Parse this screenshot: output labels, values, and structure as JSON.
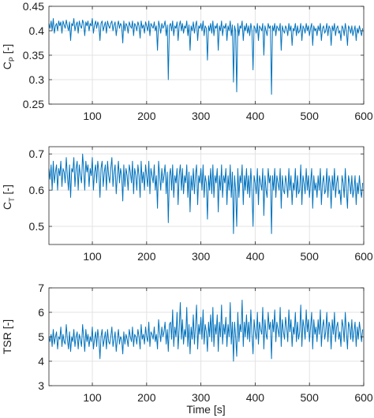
{
  "chart_data": [
    {
      "type": "line",
      "ylabel": "C_P [-]",
      "ylabel_main": "C",
      "ylabel_sub": "P",
      "ylabel_suffix": " [-]",
      "xlim": [
        20,
        600
      ],
      "ylim": [
        0.25,
        0.45
      ],
      "xticks": [
        100,
        200,
        300,
        400,
        500,
        600
      ],
      "yticks": [
        0.25,
        0.3,
        0.35,
        0.4,
        0.45
      ],
      "ytick_labels": [
        "0.25",
        "0.3",
        "0.35",
        "0.4",
        "0.45"
      ],
      "grid": true,
      "series": [
        {
          "color": "#0072BD",
          "x_step": 2,
          "values": [
            0.415,
            0.405,
            0.42,
            0.4,
            0.425,
            0.395,
            0.41,
            0.415,
            0.4,
            0.42,
            0.41,
            0.418,
            0.395,
            0.42,
            0.412,
            0.405,
            0.422,
            0.41,
            0.4,
            0.418,
            0.38,
            0.415,
            0.41,
            0.425,
            0.4,
            0.412,
            0.418,
            0.395,
            0.42,
            0.41,
            0.405,
            0.422,
            0.415,
            0.39,
            0.418,
            0.41,
            0.42,
            0.4,
            0.415,
            0.41,
            0.425,
            0.395,
            0.412,
            0.42,
            0.405,
            0.418,
            0.41,
            0.38,
            0.415,
            0.42,
            0.4,
            0.41,
            0.418,
            0.395,
            0.42,
            0.41,
            0.405,
            0.415,
            0.42,
            0.4,
            0.412,
            0.418,
            0.39,
            0.41,
            0.42,
            0.405,
            0.415,
            0.41,
            0.375,
            0.42,
            0.4,
            0.415,
            0.41,
            0.395,
            0.418,
            0.41,
            0.405,
            0.42,
            0.39,
            0.415,
            0.41,
            0.4,
            0.418,
            0.41,
            0.385,
            0.42,
            0.405,
            0.412,
            0.395,
            0.418,
            0.41,
            0.4,
            0.42,
            0.39,
            0.415,
            0.41,
            0.405,
            0.418,
            0.4,
            0.41,
            0.36,
            0.42,
            0.41,
            0.395,
            0.415,
            0.405,
            0.41,
            0.42,
            0.39,
            0.412,
            0.3,
            0.41,
            0.415,
            0.4,
            0.42,
            0.39,
            0.41,
            0.405,
            0.418,
            0.38,
            0.41,
            0.42,
            0.4,
            0.415,
            0.395,
            0.41,
            0.405,
            0.42,
            0.39,
            0.412,
            0.36,
            0.41,
            0.4,
            0.418,
            0.395,
            0.41,
            0.42,
            0.38,
            0.41,
            0.405,
            0.415,
            0.4,
            0.42,
            0.39,
            0.41,
            0.405,
            0.34,
            0.41,
            0.4,
            0.415,
            0.395,
            0.42,
            0.39,
            0.41,
            0.405,
            0.415,
            0.36,
            0.41,
            0.4,
            0.42,
            0.39,
            0.41,
            0.405,
            0.415,
            0.38,
            0.41,
            0.4,
            0.42,
            0.39,
            0.412,
            0.295,
            0.41,
            0.4,
            0.275,
            0.415,
            0.39,
            0.41,
            0.405,
            0.42,
            0.38,
            0.41,
            0.4,
            0.415,
            0.395,
            0.41,
            0.39,
            0.415,
            0.4,
            0.32,
            0.41,
            0.405,
            0.395,
            0.415,
            0.38,
            0.41,
            0.405,
            0.4,
            0.415,
            0.35,
            0.41,
            0.4,
            0.39,
            0.415,
            0.405,
            0.41,
            0.27,
            0.41,
            0.4,
            0.415,
            0.39,
            0.41,
            0.405,
            0.4,
            0.415,
            0.36,
            0.41,
            0.4,
            0.395,
            0.41,
            0.405,
            0.39,
            0.415,
            0.4,
            0.41,
            0.37,
            0.405,
            0.4,
            0.415,
            0.39,
            0.41,
            0.395,
            0.4,
            0.415,
            0.38,
            0.41,
            0.405,
            0.395,
            0.415,
            0.4,
            0.41,
            0.39,
            0.405,
            0.415,
            0.37,
            0.41,
            0.4,
            0.405,
            0.39,
            0.41,
            0.4,
            0.415,
            0.38,
            0.405,
            0.41,
            0.395,
            0.4,
            0.415,
            0.39,
            0.41,
            0.405,
            0.37,
            0.41,
            0.4,
            0.415,
            0.39,
            0.405,
            0.41,
            0.395,
            0.4,
            0.38,
            0.41,
            0.405,
            0.39,
            0.415,
            0.4,
            0.37,
            0.41,
            0.405,
            0.395,
            0.41,
            0.39,
            0.4,
            0.41,
            0.38,
            0.405,
            0.395,
            0.41,
            0.4,
            0.39,
            0.405
          ]
        }
      ]
    },
    {
      "type": "line",
      "ylabel": "C_T [-]",
      "ylabel_main": "C",
      "ylabel_sub": "T",
      "ylabel_suffix": " [-]",
      "xlim": [
        20,
        600
      ],
      "ylim": [
        0.45,
        0.72
      ],
      "xticks": [
        100,
        200,
        300,
        400,
        500,
        600
      ],
      "yticks": [
        0.5,
        0.6,
        0.7
      ],
      "ytick_labels": [
        "0.5",
        "0.6",
        "0.7"
      ],
      "grid": true,
      "series": [
        {
          "color": "#0072BD",
          "x_step": 2,
          "values": [
            0.66,
            0.63,
            0.67,
            0.6,
            0.68,
            0.62,
            0.65,
            0.67,
            0.6,
            0.66,
            0.64,
            0.68,
            0.61,
            0.66,
            0.65,
            0.62,
            0.69,
            0.64,
            0.6,
            0.67,
            0.58,
            0.66,
            0.65,
            0.69,
            0.61,
            0.66,
            0.68,
            0.6,
            0.67,
            0.64,
            0.62,
            0.7,
            0.66,
            0.6,
            0.68,
            0.65,
            0.67,
            0.61,
            0.66,
            0.64,
            0.69,
            0.6,
            0.65,
            0.67,
            0.62,
            0.68,
            0.65,
            0.58,
            0.66,
            0.68,
            0.61,
            0.65,
            0.67,
            0.6,
            0.68,
            0.64,
            0.62,
            0.66,
            0.69,
            0.61,
            0.65,
            0.67,
            0.59,
            0.64,
            0.68,
            0.62,
            0.66,
            0.64,
            0.57,
            0.67,
            0.61,
            0.66,
            0.64,
            0.6,
            0.67,
            0.65,
            0.62,
            0.68,
            0.59,
            0.66,
            0.64,
            0.6,
            0.67,
            0.64,
            0.58,
            0.68,
            0.62,
            0.65,
            0.6,
            0.67,
            0.64,
            0.61,
            0.68,
            0.59,
            0.66,
            0.64,
            0.62,
            0.67,
            0.6,
            0.64,
            0.55,
            0.68,
            0.64,
            0.6,
            0.66,
            0.62,
            0.64,
            0.67,
            0.59,
            0.65,
            0.51,
            0.64,
            0.66,
            0.6,
            0.67,
            0.58,
            0.64,
            0.62,
            0.66,
            0.56,
            0.64,
            0.67,
            0.6,
            0.66,
            0.59,
            0.64,
            0.62,
            0.67,
            0.58,
            0.65,
            0.54,
            0.64,
            0.6,
            0.66,
            0.59,
            0.64,
            0.67,
            0.56,
            0.64,
            0.62,
            0.66,
            0.6,
            0.67,
            0.58,
            0.64,
            0.62,
            0.52,
            0.64,
            0.6,
            0.66,
            0.59,
            0.67,
            0.58,
            0.64,
            0.62,
            0.66,
            0.54,
            0.64,
            0.6,
            0.67,
            0.58,
            0.64,
            0.62,
            0.66,
            0.56,
            0.64,
            0.6,
            0.67,
            0.58,
            0.65,
            0.48,
            0.64,
            0.6,
            0.5,
            0.66,
            0.58,
            0.64,
            0.62,
            0.67,
            0.56,
            0.64,
            0.6,
            0.66,
            0.59,
            0.64,
            0.58,
            0.66,
            0.6,
            0.5,
            0.64,
            0.62,
            0.59,
            0.66,
            0.56,
            0.64,
            0.62,
            0.6,
            0.66,
            0.53,
            0.64,
            0.6,
            0.58,
            0.66,
            0.62,
            0.64,
            0.48,
            0.64,
            0.6,
            0.66,
            0.58,
            0.64,
            0.62,
            0.6,
            0.66,
            0.55,
            0.64,
            0.6,
            0.59,
            0.64,
            0.62,
            0.58,
            0.66,
            0.6,
            0.64,
            0.56,
            0.62,
            0.6,
            0.66,
            0.58,
            0.64,
            0.59,
            0.6,
            0.67,
            0.56,
            0.64,
            0.62,
            0.59,
            0.66,
            0.6,
            0.64,
            0.58,
            0.62,
            0.66,
            0.55,
            0.64,
            0.6,
            0.62,
            0.58,
            0.64,
            0.6,
            0.66,
            0.56,
            0.62,
            0.64,
            0.59,
            0.6,
            0.66,
            0.58,
            0.64,
            0.62,
            0.55,
            0.64,
            0.6,
            0.66,
            0.58,
            0.62,
            0.64,
            0.59,
            0.6,
            0.56,
            0.64,
            0.62,
            0.58,
            0.66,
            0.6,
            0.55,
            0.64,
            0.62,
            0.59,
            0.64,
            0.58,
            0.6,
            0.64,
            0.56,
            0.62,
            0.59,
            0.64,
            0.6,
            0.58,
            0.62
          ]
        }
      ]
    },
    {
      "type": "line",
      "ylabel": "TSR [-]",
      "xlabel": "Time [s]",
      "xlim": [
        20,
        600
      ],
      "ylim": [
        3,
        7
      ],
      "xticks": [
        100,
        200,
        300,
        400,
        500,
        600
      ],
      "yticks": [
        3,
        4,
        5,
        6,
        7
      ],
      "ytick_labels": [
        "3",
        "4",
        "5",
        "6",
        "7"
      ],
      "grid": true,
      "series": [
        {
          "color": "#0072BD",
          "x_step": 2,
          "values": [
            5.0,
            4.8,
            5.1,
            4.6,
            5.3,
            4.7,
            5.0,
            5.2,
            4.5,
            5.0,
            4.9,
            5.4,
            4.6,
            5.1,
            4.8,
            4.7,
            5.5,
            4.9,
            4.5,
            5.2,
            4.4,
            5.0,
            4.8,
            5.3,
            4.6,
            5.0,
            5.2,
            4.5,
            5.1,
            4.9,
            4.6,
            5.5,
            5.0,
            4.4,
            5.3,
            4.8,
            5.1,
            4.6,
            5.0,
            4.8,
            5.4,
            4.5,
            4.9,
            5.2,
            4.6,
            5.3,
            4.9,
            4.1,
            5.0,
            5.3,
            4.6,
            4.9,
            5.2,
            4.5,
            5.3,
            4.8,
            4.7,
            5.0,
            5.4,
            4.6,
            4.9,
            5.2,
            4.4,
            4.9,
            5.3,
            4.7,
            5.0,
            4.9,
            4.3,
            5.2,
            4.7,
            5.1,
            4.9,
            4.6,
            5.3,
            5.0,
            4.8,
            5.4,
            4.6,
            5.1,
            5.0,
            4.7,
            5.3,
            5.0,
            4.5,
            5.5,
            4.9,
            5.1,
            4.7,
            5.4,
            5.0,
            4.8,
            5.6,
            4.6,
            5.2,
            5.1,
            4.9,
            5.4,
            4.8,
            5.1,
            4.5,
            5.7,
            5.2,
            4.8,
            5.4,
            5.0,
            5.2,
            5.6,
            4.7,
            5.3,
            4.4,
            5.5,
            5.6,
            4.9,
            6.1,
            4.6,
            5.4,
            5.0,
            6.0,
            4.5,
            5.3,
            6.4,
            4.9,
            5.7,
            4.7,
            5.3,
            5.0,
            6.2,
            4.6,
            5.5,
            4.3,
            5.4,
            4.9,
            5.9,
            4.7,
            5.4,
            6.3,
            4.5,
            5.5,
            5.1,
            5.8,
            4.9,
            6.1,
            4.7,
            5.5,
            5.2,
            4.4,
            5.6,
            5.0,
            5.9,
            4.8,
            6.2,
            4.6,
            5.5,
            5.1,
            5.9,
            4.4,
            5.6,
            5.0,
            6.3,
            4.7,
            5.5,
            5.1,
            5.8,
            4.6,
            5.5,
            5.0,
            6.4,
            4.7,
            5.6,
            4.0,
            5.6,
            5.0,
            4.2,
            6.0,
            4.8,
            5.5,
            5.2,
            6.5,
            4.6,
            5.6,
            5.0,
            5.9,
            4.9,
            5.6,
            4.8,
            6.1,
            5.1,
            4.3,
            5.7,
            5.2,
            4.9,
            6.0,
            4.7,
            5.6,
            5.3,
            5.1,
            6.2,
            4.5,
            5.7,
            5.1,
            4.9,
            6.0,
            5.3,
            5.6,
            4.1,
            5.7,
            5.2,
            6.1,
            4.8,
            5.6,
            5.3,
            5.0,
            6.2,
            4.6,
            5.7,
            5.2,
            4.9,
            5.8,
            5.4,
            4.8,
            6.1,
            5.2,
            5.7,
            4.6,
            5.4,
            5.1,
            6.0,
            4.8,
            5.6,
            4.9,
            5.2,
            6.3,
            4.6,
            5.7,
            5.4,
            4.9,
            6.1,
            5.2,
            5.7,
            4.8,
            5.4,
            6.0,
            4.5,
            5.7,
            5.1,
            5.4,
            4.8,
            5.7,
            5.1,
            6.1,
            4.6,
            5.4,
            5.7,
            4.9,
            5.2,
            6.0,
            4.8,
            5.6,
            5.4,
            4.5,
            5.7,
            5.1,
            6.0,
            4.8,
            5.4,
            5.6,
            4.9,
            5.2,
            4.6,
            5.7,
            5.4,
            4.8,
            6.0,
            5.2,
            4.5,
            5.6,
            5.4,
            4.9,
            5.7,
            4.8,
            5.2,
            5.6,
            4.6,
            5.4,
            4.9,
            5.6,
            5.2,
            4.8,
            5.3
          ]
        }
      ]
    }
  ]
}
